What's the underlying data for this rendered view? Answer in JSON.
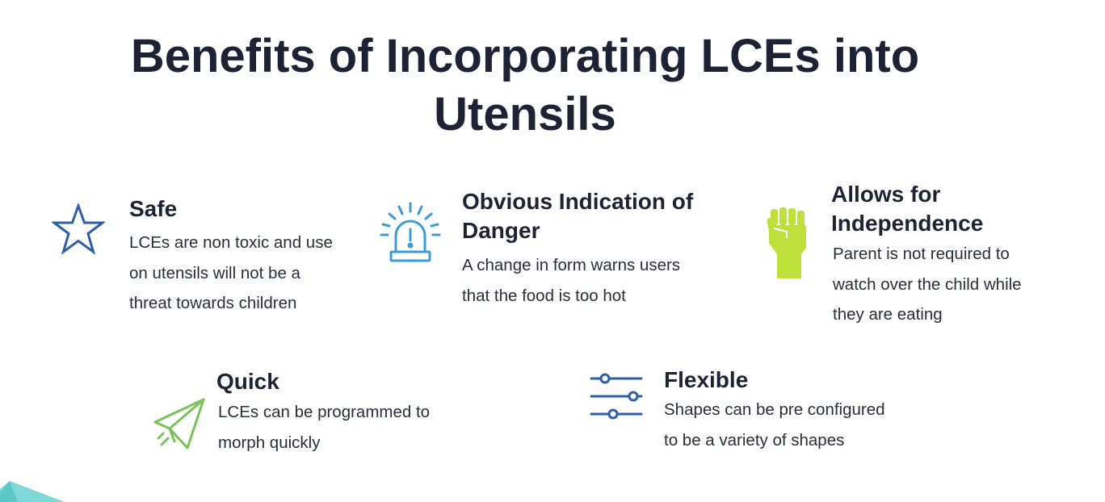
{
  "slide": {
    "title_line1": "Benefits of Incorporating LCEs into",
    "title_line2": "Utensils"
  },
  "benefits": [
    {
      "heading": "Safe",
      "body_lines": [
        "LCEs are non toxic and use",
        "on utensils will not be a",
        "threat towards children"
      ],
      "icon": "star-icon",
      "icon_color": "#2f5ea8"
    },
    {
      "heading_lines": [
        "Obvious Indication of",
        "Danger"
      ],
      "body_lines": [
        "A change in form warns users",
        "that the food is too hot"
      ],
      "icon": "alarm-siren-icon",
      "icon_color": "#3b9ad9"
    },
    {
      "heading_lines": [
        "Allows for",
        "Independence"
      ],
      "body_lines": [
        "Parent is not required to",
        "watch over the child while",
        "they are eating"
      ],
      "icon": "raised-fist-icon",
      "icon_color": "#bfe03a"
    },
    {
      "heading": "Quick",
      "body_lines": [
        "LCEs can be programmed to",
        "morph quickly"
      ],
      "icon": "paper-plane-icon",
      "icon_color": "#7ac15a"
    },
    {
      "heading": "Flexible",
      "body_lines": [
        "Shapes can be pre configured",
        "to be a variety of shapes"
      ],
      "icon": "sliders-icon",
      "icon_color": "#2f5ea8"
    }
  ],
  "decor": {
    "corner_color": "#7fd8d8"
  }
}
